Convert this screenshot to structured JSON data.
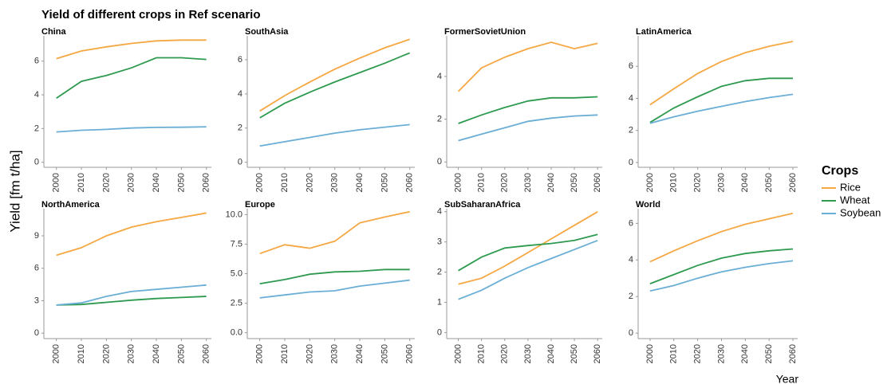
{
  "chart_data": {
    "type": "line",
    "title": "Yield of different crops in Ref scenario",
    "y_label": "Yield [fm t/ha]",
    "x_label": "Year",
    "legend_title": "Crops",
    "series": [
      {
        "name": "Rice",
        "color": "#f5a742"
      },
      {
        "name": "Wheat",
        "color": "#2e9a4f"
      },
      {
        "name": "Soybean",
        "color": "#6aaed6"
      }
    ],
    "x": [
      2000,
      2010,
      2020,
      2030,
      2040,
      2050,
      2060
    ],
    "xlim": [
      1995,
      2062
    ],
    "panels": [
      {
        "title": "China",
        "ylim": [
          -0.3,
          7.5
        ],
        "yticks": [
          0,
          2,
          4,
          6
        ],
        "values": [
          [
            6.15,
            6.6,
            6.85,
            7.05,
            7.2,
            7.25,
            7.25
          ],
          [
            3.8,
            4.8,
            5.15,
            5.6,
            6.2,
            6.2,
            6.1
          ],
          [
            1.8,
            1.9,
            1.95,
            2.03,
            2.07,
            2.08,
            2.1
          ]
        ]
      },
      {
        "title": "SouthAsia",
        "ylim": [
          -0.3,
          7.4
        ],
        "yticks": [
          0,
          2,
          4,
          6
        ],
        "values": [
          [
            3.0,
            3.9,
            4.7,
            5.45,
            6.1,
            6.7,
            7.2
          ],
          [
            2.6,
            3.45,
            4.1,
            4.7,
            5.25,
            5.8,
            6.4
          ],
          [
            0.95,
            1.2,
            1.45,
            1.7,
            1.9,
            2.05,
            2.2
          ]
        ]
      },
      {
        "title": "FormerSovietUnion",
        "ylim": [
          -0.25,
          5.9
        ],
        "yticks": [
          0,
          2,
          4
        ],
        "values": [
          [
            3.3,
            4.4,
            4.9,
            5.3,
            5.6,
            5.3,
            5.55
          ],
          [
            1.8,
            2.2,
            2.55,
            2.85,
            3.0,
            3.0,
            3.05
          ],
          [
            1.0,
            1.3,
            1.6,
            1.9,
            2.05,
            2.15,
            2.2
          ]
        ]
      },
      {
        "title": "LatinAmerica",
        "ylim": [
          -0.3,
          7.9
        ],
        "yticks": [
          0,
          2,
          4,
          6
        ],
        "values": [
          [
            3.6,
            4.6,
            5.55,
            6.3,
            6.85,
            7.25,
            7.55
          ],
          [
            2.5,
            3.4,
            4.1,
            4.75,
            5.1,
            5.25,
            5.25
          ],
          [
            2.45,
            2.85,
            3.2,
            3.5,
            3.8,
            4.05,
            4.25
          ]
        ]
      },
      {
        "title": "NorthAmerica",
        "ylim": [
          -0.5,
          11.5
        ],
        "yticks": [
          0,
          3,
          6,
          9
        ],
        "values": [
          [
            7.2,
            7.9,
            9.0,
            9.8,
            10.3,
            10.7,
            11.1
          ],
          [
            2.6,
            2.65,
            2.85,
            3.05,
            3.2,
            3.3,
            3.4
          ],
          [
            2.6,
            2.8,
            3.4,
            3.85,
            4.05,
            4.25,
            4.45
          ]
        ]
      },
      {
        "title": "Europe",
        "ylim": [
          -0.5,
          10.5
        ],
        "yticks": [
          {
            "value": 0,
            "label": "0.0"
          },
          {
            "value": 2.5,
            "label": "2.5"
          },
          {
            "value": 5,
            "label": "5.0"
          },
          {
            "value": 7.5,
            "label": "7.5"
          },
          {
            "value": 10,
            "label": "10.0"
          }
        ],
        "values": [
          [
            6.7,
            7.45,
            7.15,
            7.75,
            9.3,
            9.8,
            10.25
          ],
          [
            4.15,
            4.5,
            4.95,
            5.15,
            5.2,
            5.35,
            5.35
          ],
          [
            2.95,
            3.2,
            3.45,
            3.55,
            3.95,
            4.2,
            4.45
          ]
        ]
      },
      {
        "title": "SubSaharanAfrica",
        "ylim": [
          -0.2,
          4.1
        ],
        "yticks": [
          0,
          1,
          2,
          3,
          4
        ],
        "values": [
          [
            1.6,
            1.8,
            2.2,
            2.65,
            3.1,
            3.55,
            4.0
          ],
          [
            2.05,
            2.5,
            2.8,
            2.88,
            2.95,
            3.05,
            3.25
          ],
          [
            1.1,
            1.4,
            1.8,
            2.15,
            2.45,
            2.75,
            3.05
          ]
        ]
      },
      {
        "title": "World",
        "ylim": [
          -0.3,
          6.8
        ],
        "yticks": [
          0,
          2,
          4,
          6
        ],
        "values": [
          [
            3.9,
            4.5,
            5.05,
            5.55,
            5.95,
            6.25,
            6.55
          ],
          [
            2.7,
            3.2,
            3.7,
            4.1,
            4.35,
            4.5,
            4.6
          ],
          [
            2.3,
            2.6,
            3.0,
            3.35,
            3.6,
            3.8,
            3.95
          ]
        ]
      }
    ]
  }
}
